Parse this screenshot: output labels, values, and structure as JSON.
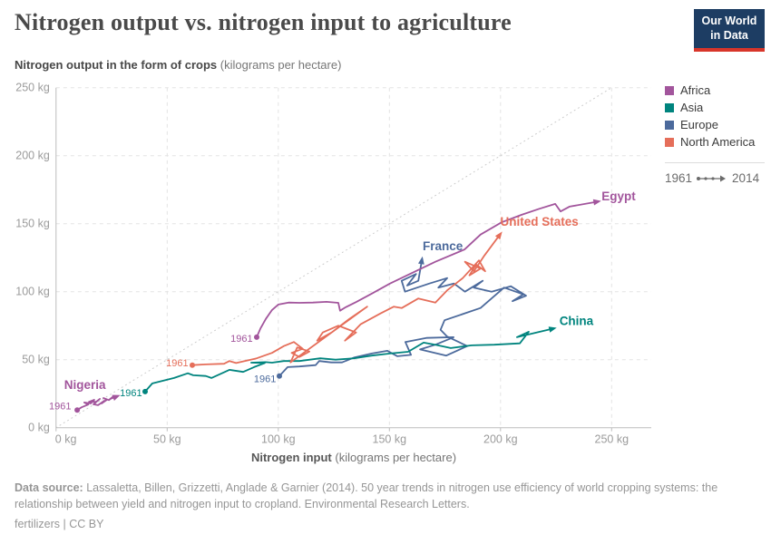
{
  "header": {
    "title": "Nitrogen output vs. nitrogen input to agriculture",
    "logo_line1": "Our World",
    "logo_line2": "in Data",
    "logo_bg": "#1d3d63",
    "logo_stripe": "#d8352a"
  },
  "subtitle": {
    "bold": "Nitrogen output in the form of crops",
    "rest": " (kilograms per hectare)"
  },
  "legend": {
    "items": [
      {
        "label": "Africa",
        "color": "#a2559c"
      },
      {
        "label": "Asia",
        "color": "#00847e"
      },
      {
        "label": "Europe",
        "color": "#4c6a9c"
      },
      {
        "label": "North America",
        "color": "#e56e5a"
      }
    ],
    "range_start": "1961",
    "range_end": "2014"
  },
  "chart_data": {
    "type": "line",
    "variant": "connected-scatter",
    "title": "Nitrogen output vs. nitrogen input to agriculture",
    "xlabel_bold": "Nitrogen input",
    "xlabel_rest": " (kilograms per hectare)",
    "ylabel_bold": "Nitrogen output in the form of crops",
    "ylabel_rest": " (kilograms per hectare)",
    "units": "kg per hectare",
    "xlim": [
      0,
      268
    ],
    "ylim": [
      0,
      251
    ],
    "grid": true,
    "year_range": {
      "start": 1961,
      "end": 2014
    },
    "identity_line": {
      "from": [
        0,
        0
      ],
      "to": [
        250,
        250
      ],
      "meaning": "output equals input"
    },
    "x_ticks": [
      {
        "value": 0,
        "label": "0 kg"
      },
      {
        "value": 50,
        "label": "50 kg"
      },
      {
        "value": 100,
        "label": "100 kg"
      },
      {
        "value": 150,
        "label": "150 kg"
      },
      {
        "value": 200,
        "label": "200 kg"
      },
      {
        "value": 250,
        "label": "250 kg"
      }
    ],
    "y_ticks": [
      {
        "value": 0,
        "label": "0 kg"
      },
      {
        "value": 50,
        "label": "50 kg"
      },
      {
        "value": 100,
        "label": "100 kg"
      },
      {
        "value": 150,
        "label": "150 kg"
      },
      {
        "value": 200,
        "label": "200 kg"
      },
      {
        "value": 250,
        "label": "250 kg"
      }
    ],
    "series": [
      {
        "id": "france",
        "name": "France",
        "region": "Europe",
        "color": "#4c6a9c",
        "label": {
          "text": "France",
          "x": 174,
          "y": 130.5,
          "anchor": "middle"
        },
        "year_label": {
          "text": "1961",
          "x": 99,
          "y": 33.5,
          "anchor": "end"
        },
        "points": [
          [
            100.5,
            38
          ],
          [
            104.2,
            44.5
          ],
          [
            109.5,
            45
          ],
          [
            116.8,
            46
          ],
          [
            118.4,
            49
          ],
          [
            123.8,
            48
          ],
          [
            128.7,
            48
          ],
          [
            134,
            51.5
          ],
          [
            142.1,
            54.5
          ],
          [
            149.1,
            56.5
          ],
          [
            153.6,
            52.5
          ],
          [
            159.7,
            53.5
          ],
          [
            157.2,
            63
          ],
          [
            166.6,
            66
          ],
          [
            178.9,
            66.5
          ],
          [
            170.7,
            61
          ],
          [
            163.8,
            57.5
          ],
          [
            175.6,
            53
          ],
          [
            185,
            60
          ],
          [
            176,
            67
          ],
          [
            173,
            72
          ],
          [
            174.8,
            79
          ],
          [
            191,
            88
          ],
          [
            201.6,
            103
          ],
          [
            210.3,
            98
          ],
          [
            205.4,
            93
          ],
          [
            211.5,
            97
          ],
          [
            204.6,
            104
          ],
          [
            196,
            100
          ],
          [
            188,
            103
          ],
          [
            192,
            108
          ],
          [
            184,
            100
          ],
          [
            179,
            106
          ],
          [
            172,
            103
          ],
          [
            176,
            110
          ],
          [
            168,
            106
          ],
          [
            157,
            100
          ],
          [
            155.5,
            108
          ],
          [
            162,
            113
          ],
          [
            158,
            104.5
          ],
          [
            163,
            108
          ],
          [
            164.5,
            122
          ]
        ]
      },
      {
        "id": "china",
        "name": "China",
        "region": "Asia",
        "color": "#00847e",
        "label": {
          "text": "China",
          "x": 226.5,
          "y": 75.5,
          "anchor": "start"
        },
        "year_label": {
          "text": "1961",
          "x": 38.7,
          "y": 23,
          "anchor": "end"
        },
        "points": [
          [
            40.1,
            26.5
          ],
          [
            43.3,
            32.5
          ],
          [
            48.2,
            34.5
          ],
          [
            53.1,
            36.5
          ],
          [
            59.3,
            40
          ],
          [
            61.7,
            38.5
          ],
          [
            67.4,
            38
          ],
          [
            69.9,
            36.5
          ],
          [
            78,
            42.5
          ],
          [
            84.2,
            41
          ],
          [
            89.1,
            44.5
          ],
          [
            93.9,
            47.5
          ],
          [
            87.8,
            47.8
          ],
          [
            94.3,
            48.2
          ],
          [
            97.2,
            47.8
          ],
          [
            102.5,
            49
          ],
          [
            109.5,
            49
          ],
          [
            118.9,
            51
          ],
          [
            125.8,
            50
          ],
          [
            134,
            51
          ],
          [
            142.1,
            53
          ],
          [
            150.3,
            54.5
          ],
          [
            158.4,
            55.8
          ],
          [
            165.4,
            62.5
          ],
          [
            170.7,
            61
          ],
          [
            177.6,
            58.5
          ],
          [
            187,
            60.5
          ],
          [
            197.2,
            61
          ],
          [
            208.7,
            62
          ],
          [
            212.7,
            70.5
          ],
          [
            207.4,
            66.5
          ],
          [
            222.9,
            72.5
          ]
        ]
      },
      {
        "id": "united-states",
        "name": "United States",
        "region": "North America",
        "color": "#e56e5a",
        "label": {
          "text": "United States",
          "x": 217.5,
          "y": 148.5,
          "anchor": "middle"
        },
        "year_label": {
          "text": "1961",
          "x": 59.5,
          "y": 45,
          "anchor": "end"
        },
        "points": [
          [
            61.3,
            46
          ],
          [
            67.4,
            46.5
          ],
          [
            75.6,
            47
          ],
          [
            78,
            49
          ],
          [
            81,
            47.5
          ],
          [
            90.3,
            51
          ],
          [
            97.2,
            55
          ],
          [
            102.5,
            60
          ],
          [
            107,
            63
          ],
          [
            111,
            58
          ],
          [
            106,
            55
          ],
          [
            109.5,
            52
          ],
          [
            114,
            56
          ],
          [
            108.5,
            59
          ],
          [
            105.5,
            48
          ],
          [
            140,
            89
          ],
          [
            132,
            80
          ],
          [
            124,
            70
          ],
          [
            117.5,
            64
          ],
          [
            120,
            70
          ],
          [
            127,
            75
          ],
          [
            135,
            70
          ],
          [
            130,
            64
          ],
          [
            137,
            76
          ],
          [
            146,
            84
          ],
          [
            152,
            89
          ],
          [
            155.6,
            88
          ],
          [
            163,
            95
          ],
          [
            170.7,
            92
          ],
          [
            176,
            101
          ],
          [
            183,
            110
          ],
          [
            190.3,
            123
          ],
          [
            193.1,
            115
          ],
          [
            189,
            120
          ],
          [
            186,
            112
          ],
          [
            191,
            117
          ],
          [
            184,
            122
          ],
          [
            188,
            115
          ],
          [
            192.5,
            126
          ],
          [
            199.3,
            141
          ]
        ]
      },
      {
        "id": "egypt",
        "name": "Egypt",
        "region": "Africa",
        "color": "#a2559c",
        "label": {
          "text": "Egypt",
          "x": 245.5,
          "y": 167,
          "anchor": "start"
        },
        "year_label": {
          "text": "1961",
          "x": 88.5,
          "y": 63,
          "anchor": "end"
        },
        "points": [
          [
            90.3,
            66.5
          ],
          [
            92,
            73
          ],
          [
            94.4,
            80
          ],
          [
            97.2,
            86.5
          ],
          [
            100,
            90.5
          ],
          [
            104.6,
            92
          ],
          [
            109.5,
            91.8
          ],
          [
            115.6,
            92
          ],
          [
            121.7,
            92.5
          ],
          [
            127,
            91.8
          ],
          [
            127.8,
            86
          ],
          [
            130.3,
            88.5
          ],
          [
            135.2,
            92.5
          ],
          [
            142,
            98.5
          ],
          [
            150.3,
            106
          ],
          [
            160.5,
            114
          ],
          [
            170.7,
            122
          ],
          [
            183.8,
            131
          ],
          [
            191,
            142
          ],
          [
            200.5,
            151
          ],
          [
            209.5,
            156.5
          ],
          [
            217.6,
            161
          ],
          [
            224.6,
            164.5
          ],
          [
            227,
            159
          ],
          [
            231,
            162.5
          ],
          [
            242.9,
            166
          ]
        ]
      },
      {
        "id": "nigeria",
        "name": "Nigeria",
        "region": "Africa",
        "color": "#a2559c",
        "label": {
          "text": "Nigeria",
          "x": 13,
          "y": 28.5,
          "anchor": "middle"
        },
        "year_label": {
          "text": "1961",
          "x": 6.8,
          "y": 13.5,
          "anchor": "end"
        },
        "points": [
          [
            9.5,
            13
          ],
          [
            11.5,
            15
          ],
          [
            14.5,
            17
          ],
          [
            12.7,
            18.5
          ],
          [
            15.6,
            17.8
          ],
          [
            17.2,
            20.5
          ],
          [
            14.8,
            19
          ],
          [
            18,
            19
          ],
          [
            19.7,
            21.2
          ],
          [
            16.8,
            17.2
          ],
          [
            18.9,
            16.5
          ],
          [
            21.7,
            19.8
          ],
          [
            20.5,
            17.8
          ],
          [
            22.9,
            20.5
          ],
          [
            21.3,
            21.8
          ],
          [
            23.8,
            20.3
          ],
          [
            25.8,
            23
          ],
          [
            24.2,
            21
          ],
          [
            26.6,
            22.5
          ]
        ]
      }
    ]
  },
  "footer": {
    "source_label": "Data source:",
    "source_text": " Lassaletta, Billen, Grizzetti, Anglade & Garnier (2014). 50 year trends in nitrogen use efficiency of world cropping systems: the relationship between yield and nitrogen input to cropland. Environmental Research Letters.",
    "tag": "fertilizers",
    "divider": " | ",
    "license": "CC BY"
  }
}
